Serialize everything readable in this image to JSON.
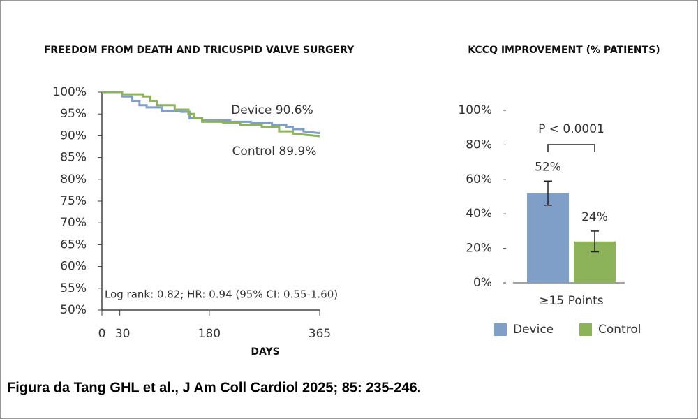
{
  "chart_data": [
    {
      "type": "line",
      "title": "FREEDOM FROM DEATH AND TRICUSPID VALVE SURGERY",
      "x_label": "DAYS",
      "xlim": [
        0,
        365
      ],
      "xticks": [
        0,
        30,
        180,
        365
      ],
      "ylim": [
        50,
        100
      ],
      "yticks": [
        {
          "value": 50,
          "label": "50%"
        },
        {
          "value": 55,
          "label": "55%"
        },
        {
          "value": 60,
          "label": "60%"
        },
        {
          "value": 65,
          "label": "65%"
        },
        {
          "value": 70,
          "label": "70%"
        },
        {
          "value": 75,
          "label": "75%"
        },
        {
          "value": 80,
          "label": "80%"
        },
        {
          "value": 85,
          "label": "85%"
        },
        {
          "value": 90,
          "label": "90%"
        },
        {
          "value": 95,
          "label": "95%"
        },
        {
          "value": 100,
          "label": "100%"
        }
      ],
      "series": [
        {
          "name": "Device",
          "color": "#7f9fc9",
          "x": [
            0,
            34,
            34,
            51,
            51,
            63,
            63,
            75,
            75,
            100,
            100,
            133,
            133,
            147,
            147,
            168,
            168,
            215,
            215,
            250,
            250,
            285,
            285,
            309,
            309,
            320,
            320,
            338,
            338,
            365
          ],
          "values": [
            100,
            100,
            99,
            99,
            98,
            98,
            97,
            97,
            96.5,
            96.5,
            95.7,
            95.7,
            95.5,
            95.5,
            94,
            94,
            93.5,
            93.5,
            93.2,
            93.2,
            93,
            93,
            92.5,
            92.5,
            92,
            92,
            91.5,
            91.5,
            91,
            90.6
          ]
        },
        {
          "name": "Control",
          "color": "#8db35a",
          "x": [
            0,
            34,
            34,
            69,
            69,
            81,
            81,
            92,
            92,
            122,
            122,
            145,
            145,
            154,
            154,
            168,
            168,
            203,
            203,
            232,
            232,
            268,
            268,
            297,
            297,
            320,
            320,
            365
          ],
          "values": [
            100,
            100,
            99.5,
            99.5,
            99,
            99,
            98,
            98,
            97,
            97,
            96,
            96,
            95,
            95,
            94,
            94,
            93.2,
            93.2,
            93,
            93,
            92.5,
            92.5,
            92,
            92,
            91,
            91,
            90.5,
            89.9
          ]
        }
      ],
      "annotations": [
        "Device 90.6%",
        "Control 89.9%",
        "Log rank: 0.82; HR: 0.94 (95% CI: 0.55-1.60)"
      ]
    },
    {
      "type": "bar",
      "title": "KCCQ IMPROVEMENT (% PATIENTS)",
      "categories": [
        "≥15 Points"
      ],
      "ylim": [
        0,
        100
      ],
      "yticks": [
        {
          "value": 0,
          "label": "0%"
        },
        {
          "value": 20,
          "label": "20%"
        },
        {
          "value": 40,
          "label": "40%"
        },
        {
          "value": 60,
          "label": "60%"
        },
        {
          "value": 80,
          "label": "80%"
        },
        {
          "value": 100,
          "label": "100%"
        }
      ],
      "series": [
        {
          "name": "Device",
          "color": "#7f9fc9",
          "values": [
            52
          ],
          "value_labels": [
            "52%"
          ],
          "errors": [
            7
          ]
        },
        {
          "name": "Control",
          "color": "#8db35a",
          "values": [
            24
          ],
          "value_labels": [
            "24%"
          ],
          "errors": [
            6
          ]
        }
      ],
      "annotations": [
        "P < 0.0001"
      ],
      "legend": "bottom"
    }
  ],
  "caption": "Figura da Tang GHL et al., J Am Coll Cardiol 2025; 85: 235-246."
}
